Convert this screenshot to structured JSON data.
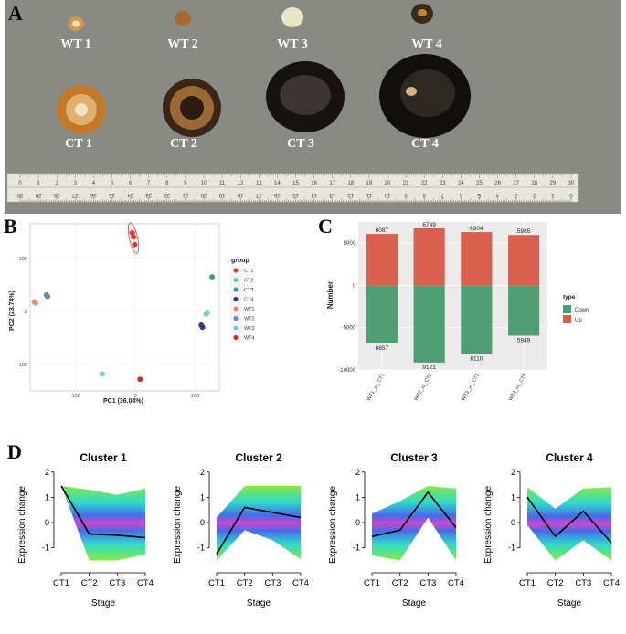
{
  "panel_labels": {
    "a": "A",
    "b": "B",
    "c": "C",
    "d": "D"
  },
  "photo": {
    "wt_labels": [
      "WT 1",
      "WT 2",
      "WT 3",
      "WT 4"
    ],
    "ct_labels": [
      "CT 1",
      "CT 2",
      "CT 3",
      "CT 4"
    ],
    "ruler_top_numbers": [
      "0",
      "1",
      "2",
      "3",
      "4",
      "5",
      "6",
      "7",
      "8",
      "9",
      "10",
      "11",
      "12",
      "13",
      "14",
      "15",
      "16",
      "17",
      "18",
      "19",
      "20",
      "21",
      "22",
      "23",
      "24",
      "25",
      "26",
      "27",
      "28",
      "29",
      "30"
    ],
    "ruler_bottom_numbers": [
      "30",
      "29",
      "28",
      "27",
      "26",
      "25",
      "24",
      "23",
      "22",
      "21",
      "20",
      "19",
      "18",
      "17",
      "16",
      "15",
      "14",
      "13",
      "12",
      "11",
      "10",
      "9",
      "8",
      "7",
      "6",
      "5",
      "4",
      "3",
      "2",
      "1",
      "0"
    ],
    "ruler_second_scale": [
      "1",
      "2",
      "3",
      "4",
      "5",
      "6",
      "7",
      "8",
      "9",
      "10"
    ]
  },
  "chart_data": [
    {
      "id": "B",
      "type": "scatter",
      "title": "",
      "xlabel": "PC1 (36.04%)",
      "ylabel": "PC2 (23.74%)",
      "xticks": [
        -100,
        0,
        100
      ],
      "yticks": [
        -100,
        0,
        100
      ],
      "xlim": [
        -175,
        140
      ],
      "ylim": [
        -150,
        165
      ],
      "legend_title": "group",
      "series": [
        {
          "name": "CT1",
          "color": "#e03a2e",
          "points": [
            [
              -5,
              148
            ],
            [
              -3,
              140
            ],
            [
              -1,
              126
            ]
          ],
          "ellipse": true
        },
        {
          "name": "CT2",
          "color": "#5bc8c4",
          "points": []
        },
        {
          "name": "CT3",
          "color": "#3a9e8c",
          "points": [
            [
              128,
              65
            ]
          ]
        },
        {
          "name": "CT4",
          "color": "#2c3e78",
          "points": [
            [
              110,
              -26
            ],
            [
              112,
              -30
            ]
          ]
        },
        {
          "name": "WT1",
          "color": "#e8896e",
          "points": [
            [
              -168,
              18
            ],
            [
              -166,
              16
            ]
          ]
        },
        {
          "name": "WT2",
          "color": "#7484b4",
          "points": [
            [
              -148,
              31
            ],
            [
              -146,
              28
            ]
          ]
        },
        {
          "name": "WT3",
          "color": "#6ed0d4",
          "points": [
            [
              -55,
              -118
            ],
            [
              120,
              -2
            ],
            [
              118,
              -5
            ]
          ]
        },
        {
          "name": "WT4",
          "color": "#d42a2a",
          "points": [
            [
              8,
              -128
            ]
          ]
        }
      ]
    },
    {
      "id": "C",
      "type": "bar",
      "xlabel": "",
      "ylabel": "Number",
      "categories": [
        "WT1_vs_CT1",
        "WT2_vs_CT2",
        "WT3_vs_CT3",
        "WT4_vs_CT4"
      ],
      "series": [
        {
          "name": "Up",
          "color": "#d9604f",
          "values": [
            6087,
            6749,
            6304,
            5965
          ]
        },
        {
          "name": "Down",
          "color": "#4f9e74",
          "values": [
            -6857,
            -9121,
            -8110,
            -5949
          ]
        }
      ],
      "value_labels_up": [
        "6087",
        "6749",
        "6304",
        "5965"
      ],
      "value_labels_down": [
        "6857",
        "9121",
        "8110",
        "5949"
      ],
      "yticks": [
        -10000,
        -5000,
        0,
        5000
      ],
      "ytick_labels": [
        "-10000",
        "-5000",
        "0",
        "5000"
      ],
      "ylim": [
        -10000,
        7500
      ],
      "legend_title": "type",
      "legend": [
        "Down",
        "Up"
      ]
    },
    {
      "id": "D",
      "type": "line",
      "xlabel": "Stage",
      "ylabel": "Expression change",
      "categories": [
        "CT1",
        "CT2",
        "CT3",
        "CT4"
      ],
      "yticks": [
        -1,
        0,
        1,
        2
      ],
      "ylim": [
        -1.7,
        2.1
      ],
      "panels": [
        {
          "title": "Cluster 1",
          "centroid": [
            1.45,
            -0.45,
            -0.5,
            -0.6
          ],
          "upper": [
            1.45,
            1.3,
            1.1,
            1.35
          ],
          "lower": [
            1.45,
            -1.5,
            -1.5,
            -1.25
          ]
        },
        {
          "title": "Cluster 2",
          "centroid": [
            -1.25,
            0.6,
            0.4,
            0.2
          ],
          "upper": [
            0.2,
            1.45,
            1.45,
            1.45
          ],
          "lower": [
            -1.5,
            -0.3,
            -0.7,
            -1.45
          ]
        },
        {
          "title": "Cluster 3",
          "centroid": [
            -0.55,
            -0.3,
            1.2,
            -0.2
          ],
          "upper": [
            0.35,
            0.85,
            1.45,
            1.35
          ],
          "lower": [
            -1.3,
            -1.5,
            0.2,
            -1.5
          ]
        },
        {
          "title": "Cluster 4",
          "centroid": [
            1.0,
            -0.55,
            0.45,
            -0.8
          ],
          "upper": [
            1.4,
            0.55,
            1.35,
            1.4
          ],
          "lower": [
            -0.1,
            -1.5,
            -0.7,
            -1.5
          ]
        }
      ]
    }
  ]
}
